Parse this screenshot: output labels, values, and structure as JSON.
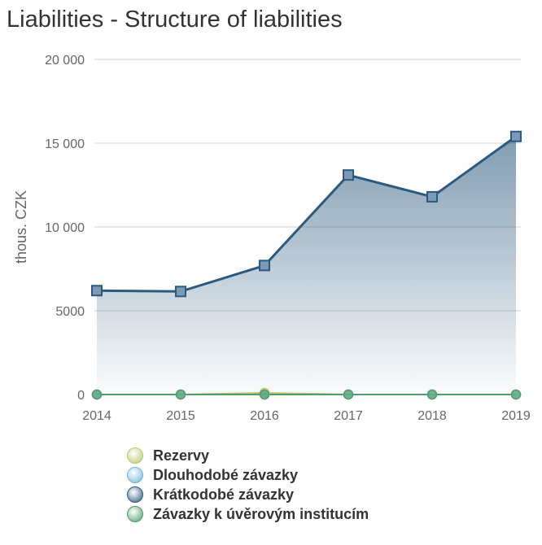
{
  "title": "Liabilities - Structure of liabilities",
  "chart_data": {
    "type": "area",
    "title": "Liabilities - Structure of liabilities",
    "ylabel": "thous. CZK",
    "xlabel": "",
    "ylim": [
      0,
      20000
    ],
    "yticks": [
      0,
      5000,
      10000,
      15000,
      20000
    ],
    "ytick_labels": [
      "0",
      "5000",
      "10 000",
      "15 000",
      "20 000"
    ],
    "categories": [
      "2014",
      "2015",
      "2016",
      "2017",
      "2018",
      "2019"
    ],
    "grid": true,
    "legend_position": "bottom",
    "series": [
      {
        "name": "Rezervy",
        "values": [
          0,
          0,
          100,
          0,
          0,
          0
        ],
        "color": "#b5c96a",
        "marker": "circle"
      },
      {
        "name": "Dlouhodobé závazky",
        "values": [
          0,
          0,
          0,
          0,
          0,
          0
        ],
        "color": "#6fb7d8",
        "marker": "circle"
      },
      {
        "name": "Krátkodobé závazky",
        "values": [
          6200,
          6150,
          7700,
          13100,
          11800,
          15400
        ],
        "color": "#2c5a7e",
        "marker": "square",
        "filled": true
      },
      {
        "name": "Závazky k úvěrovým institucím",
        "values": [
          0,
          0,
          0,
          0,
          0,
          0
        ],
        "color": "#4f9d6e",
        "marker": "circle"
      }
    ]
  }
}
